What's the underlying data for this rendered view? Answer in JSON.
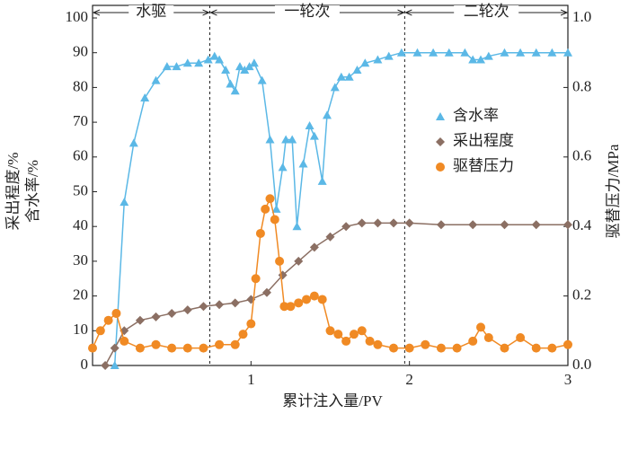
{
  "chart_data": {
    "type": "line",
    "xlabel": "累计注入量/PV",
    "ylabel": [
      "采出程度/%",
      "含水率/%"
    ],
    "y2label": "驱替压力/MPa",
    "xlim": [
      0,
      3
    ],
    "xticks": [
      1,
      2,
      3
    ],
    "ylim": [
      0,
      100
    ],
    "yticks": [
      0,
      10,
      20,
      30,
      40,
      50,
      60,
      70,
      80,
      90,
      100
    ],
    "y2lim": [
      0,
      1
    ],
    "y2ticks": [
      {
        "value": 0,
        "label": "0.0"
      },
      0.2,
      0.4,
      0.6,
      0.8,
      {
        "value": 1,
        "label": "1.0"
      }
    ],
    "legend": "upper right",
    "phases": [
      {
        "label": "水驱"
      },
      {
        "label": "一轮次"
      },
      {
        "label": "二轮次"
      }
    ],
    "boundaries": [
      0.74,
      1.97
    ],
    "series": [
      {
        "name": "含水率",
        "color": "#5bb8e6",
        "marker": "triangle",
        "x": [
          0.14,
          0.2,
          0.26,
          0.33,
          0.4,
          0.47,
          0.53,
          0.6,
          0.67,
          0.73,
          0.77,
          0.8,
          0.84,
          0.87,
          0.9,
          0.93,
          0.96,
          0.99,
          1.02,
          1.07,
          1.12,
          1.16,
          1.2,
          1.22,
          1.26,
          1.29,
          1.33,
          1.37,
          1.4,
          1.45,
          1.48,
          1.53,
          1.57,
          1.62,
          1.67,
          1.72,
          1.8,
          1.87,
          1.95,
          2.05,
          2.15,
          2.25,
          2.35,
          2.4,
          2.45,
          2.5,
          2.6,
          2.7,
          2.8,
          2.9,
          3.0
        ],
        "values": [
          0,
          47,
          64,
          77,
          82,
          86,
          86,
          87,
          87,
          88,
          89,
          88,
          85,
          81,
          79,
          86,
          85,
          86,
          87,
          82,
          65,
          45,
          57,
          65,
          65,
          40,
          58,
          69,
          66,
          53,
          72,
          80,
          83,
          83,
          85,
          87,
          88,
          89,
          90,
          90,
          90,
          90,
          90,
          88,
          88,
          89,
          90,
          90,
          90,
          90,
          90
        ]
      },
      {
        "name": "采出程度",
        "color": "#8b6f63",
        "marker": "diamond",
        "x": [
          0.08,
          0.14,
          0.2,
          0.3,
          0.4,
          0.5,
          0.6,
          0.7,
          0.8,
          0.9,
          1.0,
          1.1,
          1.2,
          1.3,
          1.4,
          1.5,
          1.6,
          1.7,
          1.8,
          1.9,
          2.0,
          2.2,
          2.4,
          2.6,
          2.8,
          3.0
        ],
        "values": [
          0,
          5,
          10,
          13,
          14,
          15,
          16,
          17,
          17.5,
          18,
          19,
          21,
          26,
          30,
          34,
          37,
          40,
          41,
          41,
          41,
          41,
          40.5,
          40.5,
          40.5,
          40.5,
          40.5
        ]
      },
      {
        "name": "驱替压力",
        "color": "#f08a24",
        "marker": "circle",
        "axis": "y2",
        "x": [
          0.0,
          0.05,
          0.1,
          0.15,
          0.2,
          0.3,
          0.4,
          0.5,
          0.6,
          0.7,
          0.8,
          0.9,
          0.95,
          1.0,
          1.03,
          1.06,
          1.09,
          1.12,
          1.15,
          1.18,
          1.21,
          1.25,
          1.3,
          1.35,
          1.4,
          1.45,
          1.5,
          1.55,
          1.6,
          1.65,
          1.7,
          1.75,
          1.8,
          1.9,
          2.0,
          2.1,
          2.2,
          2.3,
          2.4,
          2.45,
          2.5,
          2.6,
          2.7,
          2.8,
          2.9,
          3.0
        ],
        "values": [
          0.05,
          0.1,
          0.13,
          0.15,
          0.07,
          0.05,
          0.06,
          0.05,
          0.05,
          0.05,
          0.06,
          0.06,
          0.09,
          0.12,
          0.25,
          0.38,
          0.45,
          0.48,
          0.42,
          0.3,
          0.17,
          0.17,
          0.18,
          0.19,
          0.2,
          0.19,
          0.1,
          0.09,
          0.07,
          0.09,
          0.1,
          0.07,
          0.06,
          0.05,
          0.05,
          0.06,
          0.05,
          0.05,
          0.07,
          0.11,
          0.08,
          0.05,
          0.08,
          0.05,
          0.05,
          0.06
        ]
      }
    ]
  }
}
